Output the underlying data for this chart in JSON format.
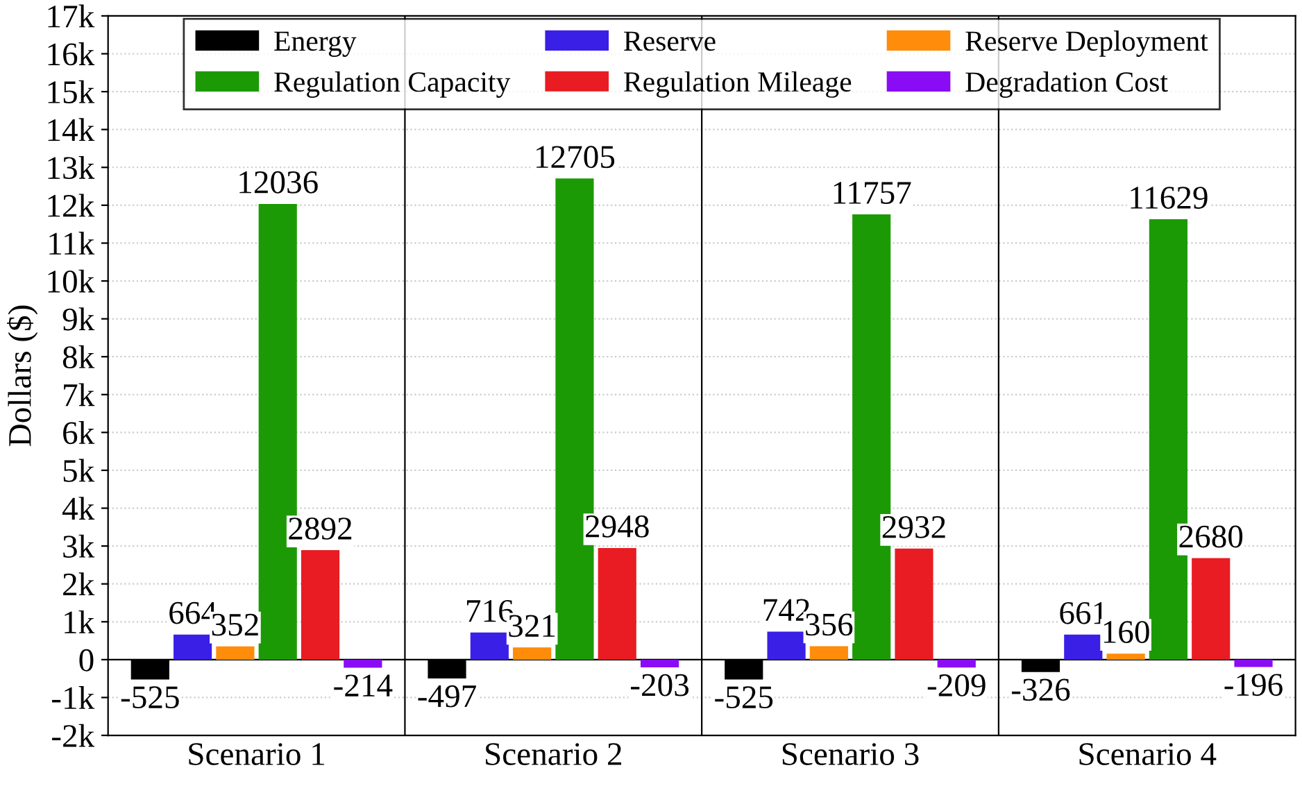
{
  "chart_data": {
    "type": "bar",
    "ylabel": "Dollars ($)",
    "categories": [
      "Scenario 1",
      "Scenario 2",
      "Scenario 3",
      "Scenario 4"
    ],
    "series": [
      {
        "name": "Energy",
        "color": "#000000",
        "values": [
          -525,
          -497,
          -525,
          -326
        ]
      },
      {
        "name": "Reserve",
        "color": "#3a1fe6",
        "values": [
          664,
          716,
          742,
          661
        ]
      },
      {
        "name": "Reserve Deployment",
        "color": "#ff8c0a",
        "values": [
          352,
          321,
          356,
          160
        ]
      },
      {
        "name": "Regulation Capacity",
        "color": "#1c9a06",
        "values": [
          12036,
          12705,
          11757,
          11629
        ]
      },
      {
        "name": "Regulation Mileage",
        "color": "#e81c22",
        "values": [
          2892,
          2948,
          2932,
          2680
        ]
      },
      {
        "name": "Degradation Cost",
        "color": "#8a0cf5",
        "values": [
          -214,
          -203,
          -209,
          -196
        ]
      }
    ],
    "ylim": [
      -2000,
      17000
    ],
    "yticks": [
      {
        "value": -2000,
        "label": "-2k"
      },
      {
        "value": -1000,
        "label": "-1k"
      },
      0,
      {
        "value": 1000,
        "label": "1k"
      },
      {
        "value": 2000,
        "label": "2k"
      },
      {
        "value": 3000,
        "label": "3k"
      },
      {
        "value": 4000,
        "label": "4k"
      },
      {
        "value": 5000,
        "label": "5k"
      },
      {
        "value": 6000,
        "label": "6k"
      },
      {
        "value": 7000,
        "label": "7k"
      },
      {
        "value": 8000,
        "label": "8k"
      },
      {
        "value": 9000,
        "label": "9k"
      },
      {
        "value": 10000,
        "label": "10k"
      },
      {
        "value": 11000,
        "label": "11k"
      },
      {
        "value": 12000,
        "label": "12k"
      },
      {
        "value": 13000,
        "label": "13k"
      },
      {
        "value": 14000,
        "label": "14k"
      },
      {
        "value": 15000,
        "label": "15k"
      },
      {
        "value": 16000,
        "label": "16k"
      },
      {
        "value": 17000,
        "label": "17k"
      }
    ],
    "grid": "y",
    "legend": "top",
    "data_labels": true
  }
}
